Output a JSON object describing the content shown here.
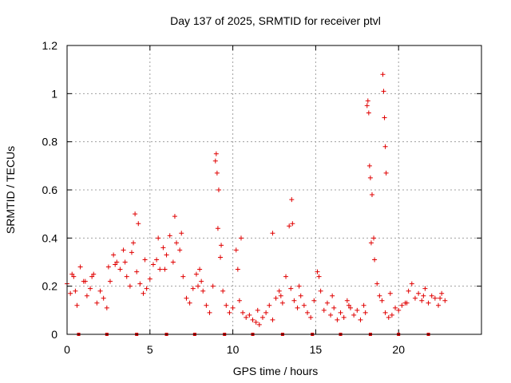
{
  "chart_data": {
    "type": "scatter",
    "title": "Day 137 of 2025, SRMTID for receiver ptvl",
    "xlabel": "GPS time / hours",
    "ylabel": "SRMTID / TECUs",
    "xlim": [
      0,
      25
    ],
    "ylim": [
      0,
      1.2
    ],
    "x_ticks": [
      0,
      5,
      10,
      15,
      20
    ],
    "y_ticks": [
      0,
      0.2,
      0.4,
      0.6,
      0.8,
      1,
      1.2
    ],
    "x_tick_labels": [
      "0",
      "5",
      "10",
      "15",
      "20"
    ],
    "y_tick_labels": [
      "0",
      "0.2",
      "0.4",
      "0.6",
      "0.8",
      "1",
      "1.2"
    ],
    "grid": true,
    "marker": "+",
    "color": "#e00000",
    "series": [
      {
        "name": "SRMTID",
        "x": [
          0.0,
          0.2,
          0.4,
          0.6,
          0.8,
          1.0,
          1.2,
          1.4,
          1.6,
          1.8,
          2.0,
          2.2,
          2.4,
          2.6,
          2.8,
          3.0,
          3.2,
          3.4,
          3.6,
          3.8,
          4.0,
          4.1,
          4.2,
          4.4,
          4.6,
          4.8,
          5.0,
          5.2,
          5.4,
          5.6,
          5.8,
          6.0,
          6.2,
          6.4,
          6.6,
          6.8,
          7.0,
          7.2,
          7.4,
          7.6,
          7.8,
          8.0,
          8.2,
          8.4,
          8.6,
          8.8,
          8.95,
          9.1,
          9.25,
          9.4,
          9.6,
          9.8,
          10.0,
          10.2,
          10.4,
          10.6,
          10.8,
          11.0,
          11.2,
          11.4,
          11.6,
          11.8,
          12.0,
          12.2,
          12.4,
          12.6,
          12.8,
          13.0,
          13.2,
          13.4,
          13.5,
          13.7,
          13.9,
          14.1,
          14.3,
          14.5,
          14.7,
          14.9,
          15.1,
          15.3,
          15.5,
          15.7,
          15.9,
          16.1,
          16.3,
          16.5,
          16.7,
          16.9,
          17.1,
          17.3,
          17.5,
          17.7,
          17.9,
          18.1,
          18.25,
          18.4,
          18.55,
          18.7,
          18.85,
          19.0,
          19.2,
          19.4,
          19.6,
          19.8,
          20.0,
          20.2,
          20.4,
          20.6,
          20.8,
          21.0,
          21.2,
          21.4,
          21.6,
          21.8,
          22.0,
          22.2,
          22.4,
          22.6,
          22.8,
          0.3,
          1.1,
          2.5,
          3.5,
          4.3,
          5.5,
          6.5,
          7.9,
          9.0,
          9.05,
          9.15,
          10.5,
          12.4,
          13.55,
          13.6,
          18.15,
          18.2,
          18.3,
          18.35,
          18.5,
          19.05,
          19.1,
          19.15,
          19.2,
          19.25,
          0.5,
          1.5,
          2.9,
          3.9,
          4.7,
          5.9,
          6.9,
          8.1,
          9.3,
          10.3,
          11.5,
          12.9,
          14.0,
          15.2,
          16.0,
          17.0,
          18.0,
          19.5,
          20.5,
          21.5,
          22.5
        ],
        "y": [
          0.21,
          0.17,
          0.24,
          0.12,
          0.28,
          0.22,
          0.16,
          0.19,
          0.25,
          0.13,
          0.18,
          0.15,
          0.11,
          0.22,
          0.33,
          0.3,
          0.27,
          0.35,
          0.24,
          0.2,
          0.38,
          0.5,
          0.26,
          0.21,
          0.17,
          0.19,
          0.23,
          0.29,
          0.31,
          0.27,
          0.36,
          0.33,
          0.41,
          0.3,
          0.38,
          0.35,
          0.24,
          0.15,
          0.13,
          0.19,
          0.25,
          0.27,
          0.18,
          0.12,
          0.09,
          0.2,
          0.72,
          0.44,
          0.32,
          0.18,
          0.12,
          0.09,
          0.11,
          0.35,
          0.14,
          0.09,
          0.07,
          0.08,
          0.06,
          0.05,
          0.04,
          0.07,
          0.09,
          0.12,
          0.06,
          0.15,
          0.18,
          0.13,
          0.24,
          0.45,
          0.19,
          0.14,
          0.11,
          0.16,
          0.12,
          0.09,
          0.07,
          0.14,
          0.26,
          0.18,
          0.1,
          0.13,
          0.08,
          0.11,
          0.06,
          0.09,
          0.07,
          0.14,
          0.11,
          0.08,
          0.1,
          0.06,
          0.12,
          0.95,
          0.7,
          0.58,
          0.31,
          0.21,
          0.16,
          0.14,
          0.09,
          0.07,
          0.08,
          0.11,
          0.1,
          0.12,
          0.13,
          0.18,
          0.21,
          0.15,
          0.17,
          0.14,
          0.19,
          0.13,
          0.16,
          0.15,
          0.12,
          0.17,
          0.14,
          0.25,
          0.22,
          0.28,
          0.3,
          0.46,
          0.4,
          0.49,
          0.2,
          0.75,
          0.67,
          0.6,
          0.4,
          0.42,
          0.56,
          0.46,
          0.97,
          0.92,
          0.65,
          0.38,
          0.4,
          1.08,
          1.01,
          0.9,
          0.78,
          0.67,
          0.18,
          0.24,
          0.29,
          0.34,
          0.31,
          0.27,
          0.42,
          0.22,
          0.37,
          0.27,
          0.1,
          0.16,
          0.2,
          0.24,
          0.16,
          0.12,
          0.09,
          0.17,
          0.13,
          0.16,
          0.15
        ]
      }
    ],
    "baseline_markers_x": [
      0.7,
      2.4,
      4.2,
      6.0,
      7.7,
      9.5,
      11.2,
      13.0,
      14.8,
      16.5,
      18.3,
      20.0,
      21.8
    ]
  }
}
